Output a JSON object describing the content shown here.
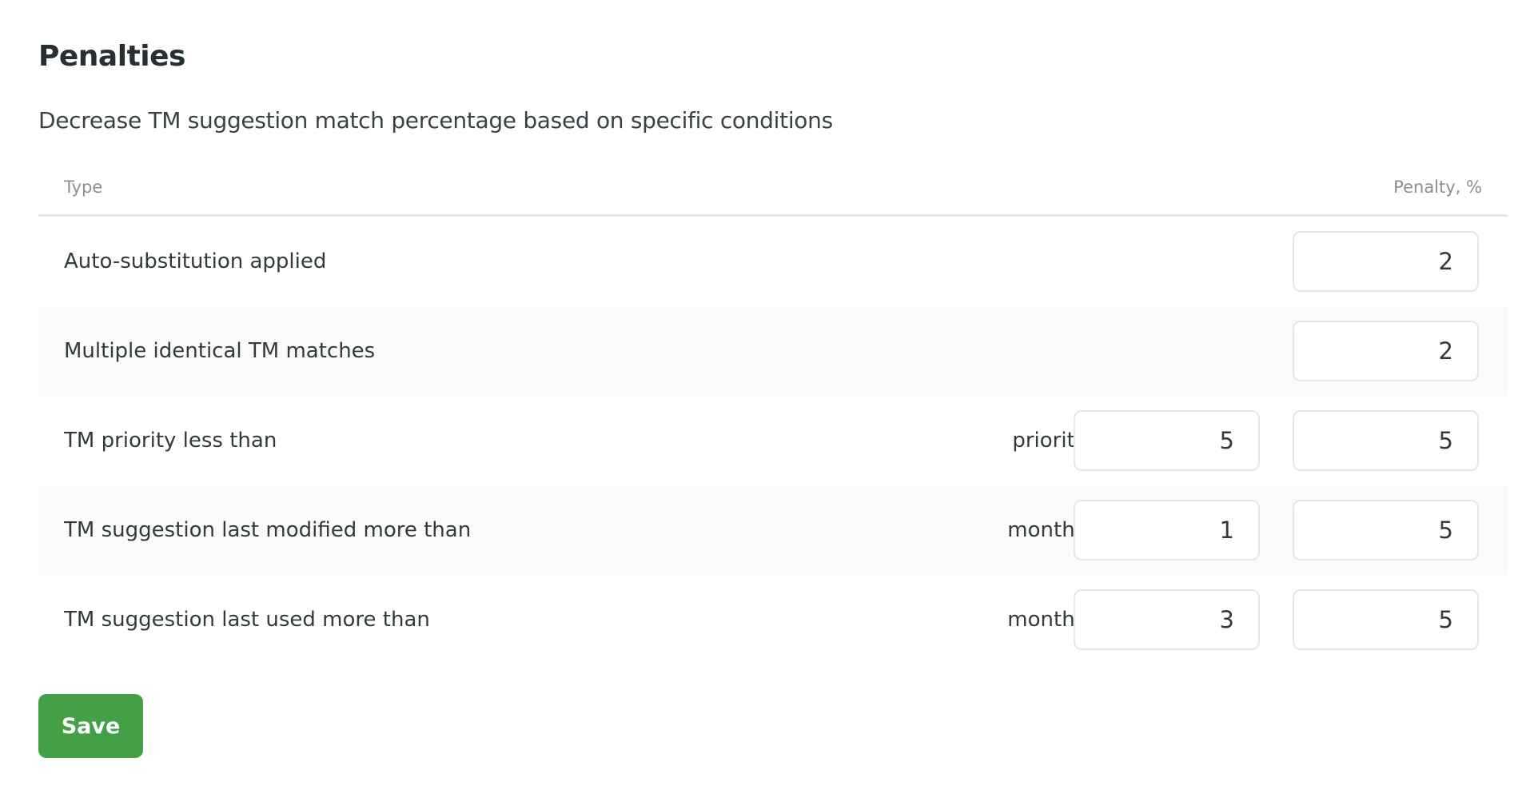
{
  "header": {
    "title": "Penalties",
    "subtitle": "Decrease TM suggestion match percentage based on specific conditions"
  },
  "table": {
    "columns": {
      "type": "Type",
      "penalty": "Penalty, %"
    },
    "rows": [
      {
        "label": "Auto-substitution applied",
        "condition_label": null,
        "condition_value": null,
        "penalty": "2"
      },
      {
        "label": "Multiple identical TM matches",
        "condition_label": null,
        "condition_value": null,
        "penalty": "2"
      },
      {
        "label": "TM priority less than",
        "condition_label": "priority:",
        "condition_value": "5",
        "penalty": "5"
      },
      {
        "label": "TM suggestion last modified more than",
        "condition_label": "months:",
        "condition_value": "1",
        "penalty": "5"
      },
      {
        "label": "TM suggestion last used more than",
        "condition_label": "months:",
        "condition_value": "3",
        "penalty": "5"
      }
    ]
  },
  "actions": {
    "save_label": "Save"
  },
  "colors": {
    "accent": "#43a047",
    "row_alt": "#fafafa"
  }
}
